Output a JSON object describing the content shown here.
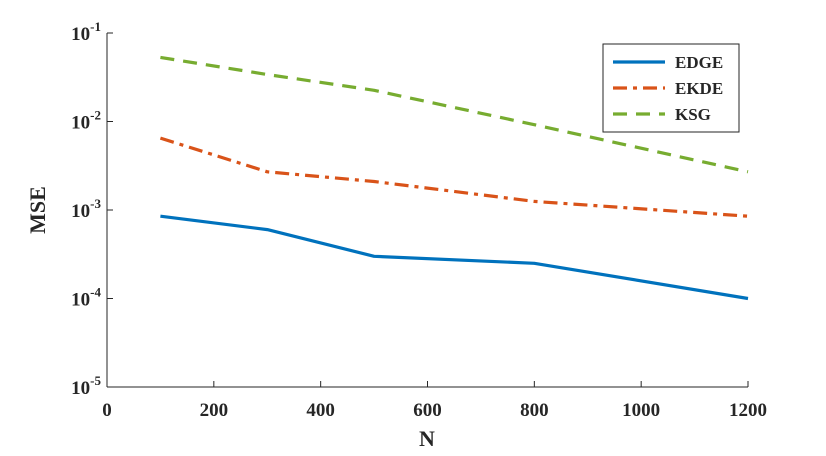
{
  "chart_data": {
    "type": "line",
    "title": "",
    "xlabel": "N",
    "ylabel": "MSE",
    "x": [
      100,
      300,
      500,
      800,
      1200
    ],
    "xlim": [
      0,
      1200
    ],
    "ylim": [
      1e-05,
      0.1
    ],
    "yscale": "log",
    "xticks": [
      0,
      200,
      400,
      600,
      800,
      1000,
      1200
    ],
    "yticks": [
      {
        "base": "10",
        "exp": "-5"
      },
      {
        "base": "10",
        "exp": "-4"
      },
      {
        "base": "10",
        "exp": "-3"
      },
      {
        "base": "10",
        "exp": "-2"
      },
      {
        "base": "10",
        "exp": "-1"
      }
    ],
    "legend_position": "top-right",
    "series": [
      {
        "name": "EDGE",
        "key": "edge",
        "color": "#0072BD",
        "style": "solid",
        "values": [
          0.00085,
          0.0006,
          0.0003,
          0.00025,
          0.0001
        ]
      },
      {
        "name": "EKDE",
        "key": "ekde",
        "color": "#D95319",
        "style": "dashdot",
        "values": [
          0.0065,
          0.0027,
          0.0021,
          0.00125,
          0.00085
        ]
      },
      {
        "name": "KSG",
        "key": "ksg",
        "color": "#77AC30",
        "style": "dashed",
        "values": [
          0.053,
          0.034,
          0.0225,
          0.0092,
          0.0027
        ]
      }
    ]
  }
}
